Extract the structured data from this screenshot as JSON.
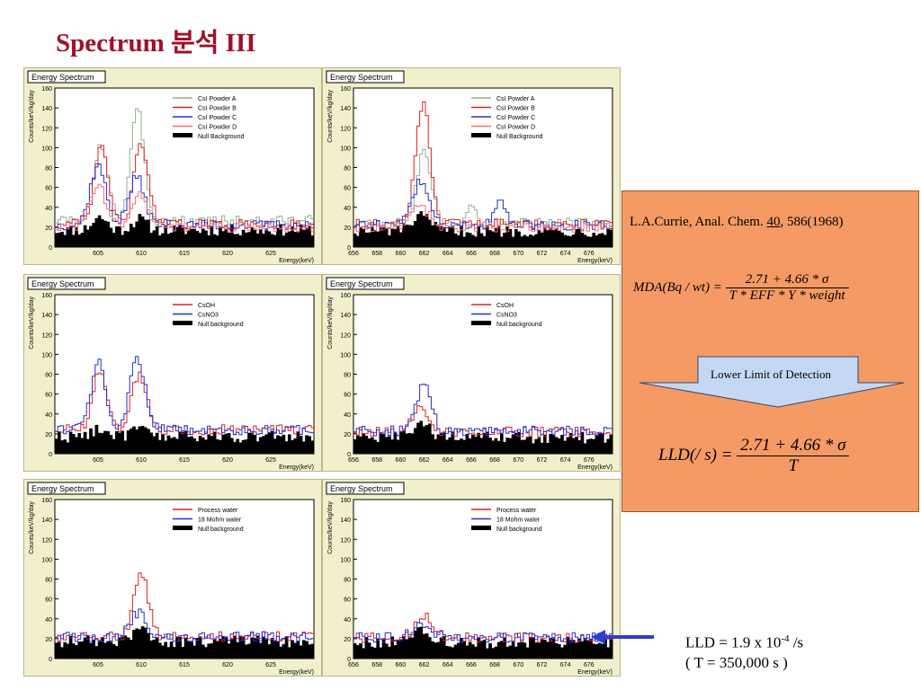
{
  "slide_title": "Spectrum 분석 III",
  "colors": {
    "title": "#a0102a",
    "panel_bg": "#f2f0cc",
    "orange_box": "#f59a64",
    "arrow": "#2a3fcf",
    "callout": "#c5d8f3"
  },
  "reference": {
    "authors": "L.A.Currie, Anal. Chem. ",
    "volume": "40",
    "pages": ", 586(1968)"
  },
  "mda": {
    "lhs": "MDA(Bq / wt) = ",
    "numerator": "2.71 + 4.66 * σ",
    "denominator": "T * EFF * Y * weight"
  },
  "detection_label": "Lower Limit of Detection",
  "lld": {
    "lhs": "LLD(/ s) = ",
    "numerator": "2.71 + 4.66 * σ",
    "denominator": "T"
  },
  "result": {
    "prefix": "LLD = 1.9 x 10",
    "exp": "-4",
    "suffix": " /s",
    "line2": "( T = 350,000 s )"
  },
  "chart_data": [
    {
      "type": "line",
      "title": "Energy Spectrum",
      "ylabel": "Counts/keV/kg/day",
      "xlabel": "Energy(keV)",
      "xlim": [
        600,
        630
      ],
      "ylim": [
        0,
        160
      ],
      "xticks": [
        605,
        610,
        615,
        620,
        625
      ],
      "yticks": [
        0,
        20,
        40,
        60,
        80,
        100,
        120,
        140,
        160
      ],
      "legend_position": "top-right",
      "series": [
        {
          "name": "CsI Powder A",
          "color": "#90b090",
          "baseline": 27,
          "peaks": [
            [
              605.4,
              102,
              0.8
            ],
            [
              609.6,
              136,
              0.8
            ]
          ]
        },
        {
          "name": "CsI Powder B",
          "color": "#e02020",
          "baseline": 23,
          "peaks": [
            [
              605.4,
              100,
              0.8
            ],
            [
              610.0,
              106,
              0.8
            ]
          ]
        },
        {
          "name": "CsI Powder C",
          "color": "#2030d0",
          "baseline": 22,
          "peaks": [
            [
              605.0,
              82,
              0.9
            ],
            [
              609.5,
              70,
              0.9
            ]
          ]
        },
        {
          "name": "CsI Powder D",
          "color": "#f07070",
          "baseline": 20,
          "peaks": [
            [
              605.0,
              62,
              0.9
            ],
            [
              609.8,
              56,
              0.9
            ]
          ]
        }
      ],
      "null_series": {
        "name": "Null Background",
        "baseline": 17,
        "peaks": [
          [
            605.2,
            30,
            0.8
          ],
          [
            609.8,
            28,
            0.8
          ]
        ]
      }
    },
    {
      "type": "line",
      "title": "Energy Spectrum",
      "ylabel": "Counts/keV/kg/day",
      "xlabel": "Energy(keV)",
      "xlim": [
        656,
        678
      ],
      "ylim": [
        0,
        160
      ],
      "xticks": [
        656,
        658,
        660,
        662,
        664,
        666,
        668,
        670,
        672,
        674,
        676
      ],
      "yticks": [
        0,
        20,
        40,
        60,
        80,
        100,
        120,
        140,
        160
      ],
      "legend_position": "top-right",
      "series": [
        {
          "name": "CsI Powder A",
          "color": "#90b090",
          "baseline": 24,
          "peaks": [
            [
              662.0,
              96,
              0.6
            ],
            [
              666.0,
              44,
              0.4
            ]
          ]
        },
        {
          "name": "CsI Powder B",
          "color": "#e02020",
          "baseline": 23,
          "peaks": [
            [
              661.9,
              145,
              0.6
            ]
          ]
        },
        {
          "name": "CsI Powder C",
          "color": "#2030d0",
          "baseline": 22,
          "peaks": [
            [
              661.7,
              65,
              0.7
            ],
            [
              668.4,
              48,
              0.5
            ]
          ]
        },
        {
          "name": "CsI Powder D",
          "color": "#f07070",
          "baseline": 20,
          "peaks": [
            [
              661.6,
              42,
              0.8
            ]
          ]
        }
      ],
      "null_series": {
        "name": "Null Background",
        "baseline": 16,
        "peaks": [
          [
            661.7,
            30,
            0.8
          ]
        ]
      }
    },
    {
      "type": "line",
      "title": "Energy Spectrum",
      "ylabel": "Counts/keV/kg/day",
      "xlabel": "Energy(keV)",
      "xlim": [
        600,
        630
      ],
      "ylim": [
        0,
        160
      ],
      "xticks": [
        605,
        610,
        615,
        620,
        625
      ],
      "yticks": [
        0,
        20,
        40,
        60,
        80,
        100,
        120,
        140,
        160
      ],
      "legend_position": "top-right",
      "series": [
        {
          "name": "CsOH",
          "color": "#e02020",
          "baseline": 24,
          "peaks": [
            [
              605.2,
              86,
              0.8
            ],
            [
              609.8,
              80,
              0.9
            ]
          ]
        },
        {
          "name": "CsNO3",
          "color": "#2030d0",
          "baseline": 24,
          "peaks": [
            [
              605.0,
              92,
              0.8
            ],
            [
              609.6,
              95,
              0.9
            ]
          ]
        }
      ],
      "null_series": {
        "name": "Null background",
        "baseline": 17,
        "peaks": [
          [
            605.2,
            26,
            0.8
          ],
          [
            609.8,
            25,
            0.8
          ]
        ]
      }
    },
    {
      "type": "line",
      "title": "Energy Spectrum",
      "ylabel": "Counts/keV/kg/day",
      "xlabel": "Energy(keV)",
      "xlim": [
        656,
        678
      ],
      "ylim": [
        0,
        160
      ],
      "xticks": [
        656,
        658,
        660,
        662,
        664,
        666,
        668,
        670,
        672,
        674,
        676
      ],
      "yticks": [
        0,
        20,
        40,
        60,
        80,
        100,
        120,
        140,
        160
      ],
      "legend_position": "top-right",
      "series": [
        {
          "name": "CsOH",
          "color": "#e02020",
          "baseline": 22,
          "peaks": [
            [
              661.7,
              46,
              0.7
            ]
          ]
        },
        {
          "name": "CsNO3",
          "color": "#2030d0",
          "baseline": 23,
          "peaks": [
            [
              662.0,
              70,
              0.6
            ]
          ]
        }
      ],
      "null_series": {
        "name": "Null background",
        "baseline": 16,
        "peaks": [
          [
            661.8,
            28,
            0.8
          ]
        ]
      }
    },
    {
      "type": "line",
      "title": "Energy Spectrum",
      "ylabel": "Counts/keV/kg/day",
      "xlabel": "Energy(keV)",
      "xlim": [
        600,
        630
      ],
      "ylim": [
        0,
        160
      ],
      "xticks": [
        605,
        610,
        615,
        620,
        625
      ],
      "yticks": [
        0,
        20,
        40,
        60,
        80,
        100,
        120,
        140,
        160
      ],
      "legend_position": "top-right",
      "series": [
        {
          "name": "Process water",
          "color": "#e02020",
          "baseline": 22,
          "peaks": [
            [
              610.0,
              88,
              0.8
            ]
          ]
        },
        {
          "name": "18 Mohm water",
          "color": "#2030d0",
          "baseline": 22,
          "peaks": [
            [
              609.6,
              46,
              0.9
            ]
          ]
        }
      ],
      "null_series": {
        "name": "Null background",
        "baseline": 17,
        "peaks": [
          [
            609.8,
            30,
            0.8
          ]
        ]
      }
    },
    {
      "type": "line",
      "title": "Energy Spectrum",
      "ylabel": "Counts/keV/kg/day",
      "xlabel": "Energy(keV)",
      "xlim": [
        656,
        678
      ],
      "ylim": [
        0,
        160
      ],
      "xticks": [
        656,
        658,
        660,
        662,
        664,
        666,
        668,
        670,
        672,
        674,
        676
      ],
      "yticks": [
        0,
        20,
        40,
        60,
        80,
        100,
        120,
        140,
        160
      ],
      "legend_position": "top-right",
      "series": [
        {
          "name": "Process water",
          "color": "#e02020",
          "baseline": 21,
          "peaks": [
            [
              662.0,
              42,
              0.7
            ]
          ]
        },
        {
          "name": "18 Mohm water",
          "color": "#2030d0",
          "baseline": 21,
          "peaks": [
            [
              661.8,
              34,
              0.8
            ]
          ]
        }
      ],
      "null_series": {
        "name": "Null background",
        "baseline": 16,
        "peaks": [
          [
            661.8,
            28,
            0.8
          ]
        ]
      }
    }
  ]
}
